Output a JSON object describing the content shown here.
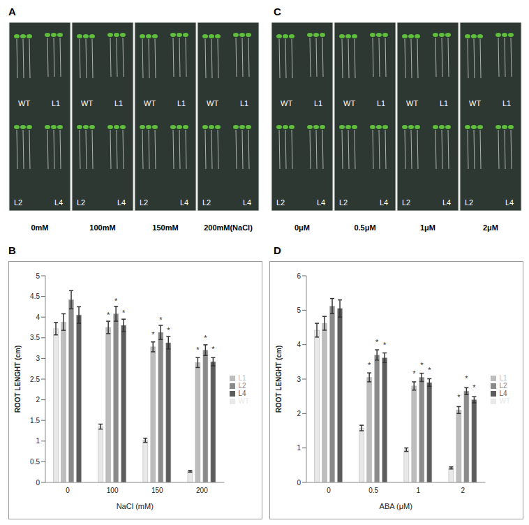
{
  "panels": {
    "letters": [
      "A",
      "B",
      "C",
      "D"
    ],
    "photo_labels": [
      "WT",
      "L1",
      "L2",
      "L4"
    ],
    "photo_A_conditions": [
      "0mM",
      "100mM",
      "150mM",
      "200mM(NaCl)"
    ],
    "photo_C_conditions": [
      "0μM",
      "0.5μM",
      "1μM",
      "2μM"
    ]
  },
  "chart_data": [
    {
      "type": "bar",
      "x_label": "NaCl (mM)",
      "y_label": "ROOT LENGHT (cm)",
      "categories": [
        "0",
        "100",
        "150",
        "200"
      ],
      "ylim": [
        0,
        5
      ],
      "yticks": [
        0,
        0.5,
        1,
        1.5,
        2,
        2.5,
        3,
        3.5,
        4,
        4.5,
        5
      ],
      "grid": false,
      "legend": "right",
      "series": [
        {
          "name": "WT",
          "color": "#e8e8e8",
          "values": [
            3.72,
            1.35,
            1.02,
            0.27
          ],
          "errors": [
            0.15,
            0.06,
            0.05,
            0.02
          ],
          "labels": [
            null,
            null,
            null,
            null
          ]
        },
        {
          "name": "L1",
          "color": "#bdbdbd",
          "values": [
            3.88,
            3.75,
            3.28,
            2.9
          ],
          "errors": [
            0.2,
            0.15,
            0.12,
            0.12
          ],
          "labels": [
            null,
            "*",
            "*",
            "*"
          ]
        },
        {
          "name": "L2",
          "color": "#8a8a8a",
          "values": [
            4.42,
            4.08,
            3.63,
            3.2
          ],
          "errors": [
            0.22,
            0.18,
            0.17,
            0.13
          ],
          "labels": [
            null,
            "*",
            "*",
            "*"
          ]
        },
        {
          "name": "L4",
          "color": "#5c5c5c",
          "values": [
            4.05,
            3.8,
            3.38,
            2.92
          ],
          "errors": [
            0.2,
            0.15,
            0.15,
            0.1
          ],
          "labels": [
            null,
            "*",
            "*",
            "*"
          ]
        }
      ]
    },
    {
      "type": "bar",
      "x_label": "ABA (μM)",
      "y_label": "ROOT LENGHT (cm)",
      "categories": [
        "0",
        "0.5",
        "1",
        "2"
      ],
      "ylim": [
        0,
        6
      ],
      "yticks": [
        0,
        1,
        2,
        3,
        4,
        5,
        6
      ],
      "grid": false,
      "legend": "right",
      "series": [
        {
          "name": "WT",
          "color": "#e8e8e8",
          "values": [
            4.42,
            1.58,
            0.95,
            0.42
          ],
          "errors": [
            0.2,
            0.08,
            0.05,
            0.03
          ],
          "labels": [
            null,
            null,
            null,
            null
          ]
        },
        {
          "name": "L1",
          "color": "#bdbdbd",
          "values": [
            4.62,
            3.05,
            2.8,
            2.1
          ],
          "errors": [
            0.2,
            0.13,
            0.12,
            0.1
          ],
          "labels": [
            null,
            "*",
            "*",
            "*"
          ]
        },
        {
          "name": "L2",
          "color": "#8a8a8a",
          "values": [
            5.12,
            3.7,
            3.05,
            2.65
          ],
          "errors": [
            0.22,
            0.15,
            0.12,
            0.1
          ],
          "labels": [
            null,
            "*",
            "*",
            "*"
          ]
        },
        {
          "name": "L4",
          "color": "#5c5c5c",
          "values": [
            5.05,
            3.62,
            2.9,
            2.4
          ],
          "errors": [
            0.25,
            0.14,
            0.11,
            0.09
          ],
          "labels": [
            null,
            "*",
            "*",
            "*"
          ]
        }
      ]
    }
  ]
}
